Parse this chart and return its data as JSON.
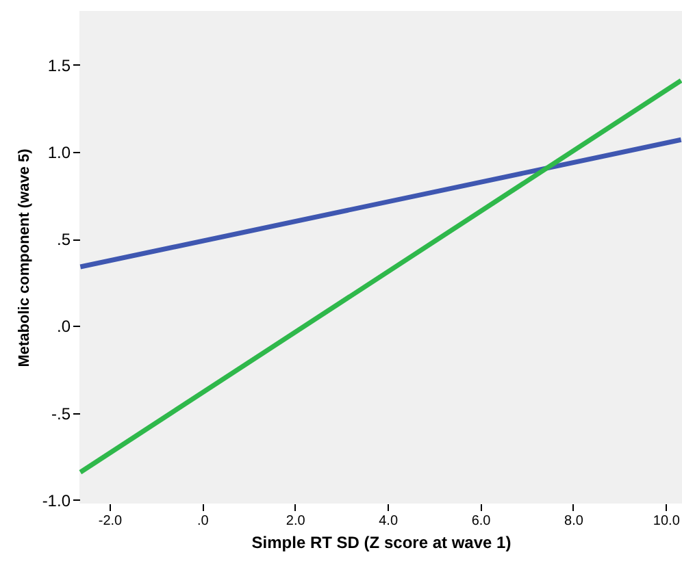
{
  "chart_data": {
    "type": "line",
    "xlabel": "Simple RT SD (Z score at wave 1)",
    "ylabel": "Metabolic component (wave 5)",
    "series": [
      {
        "color": "#3f57b1",
        "values": [
          0.34,
          1.07
        ]
      },
      {
        "color": "#2fb84b",
        "values": [
          -0.84,
          1.41
        ]
      }
    ],
    "x": [
      -2.63,
      10.33
    ],
    "xlim": [
      -2.65,
      10.35
    ],
    "ylim": [
      -1.02,
      1.81
    ],
    "xticks": [
      {
        "value": -2,
        "label": "-2.0"
      },
      {
        "value": 0,
        "label": ".0"
      },
      {
        "value": 2,
        "label": "2.0"
      },
      {
        "value": 4,
        "label": "4.0"
      },
      {
        "value": 6,
        "label": "6.0"
      },
      {
        "value": 8,
        "label": "8.0"
      },
      {
        "value": 10,
        "label": "10.0"
      }
    ],
    "yticks": [
      {
        "value": -1,
        "label": "-1.0"
      },
      {
        "value": -0.5,
        "label": "-.5"
      },
      {
        "value": 0,
        "label": ".0"
      },
      {
        "value": 0.5,
        "label": ".5"
      },
      {
        "value": 1,
        "label": "1.0"
      },
      {
        "value": 1.5,
        "label": "1.5"
      }
    ],
    "grid": false,
    "marker": "none",
    "line_style": "solid"
  }
}
